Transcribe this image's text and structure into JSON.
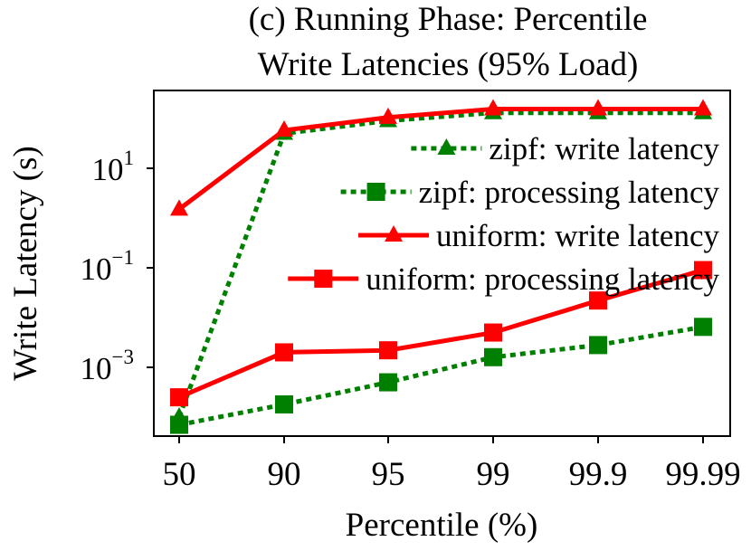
{
  "chart_data": {
    "type": "line",
    "title_lines": [
      "(c) Running Phase: Percentile",
      "Write Latencies (95% Load)"
    ],
    "xlabel": "Percentile (%)",
    "ylabel": "Write Latency (s)",
    "categories": [
      "50",
      "90",
      "95",
      "99",
      "99.9",
      "99.99"
    ],
    "y_scale": "log",
    "ylim": [
      6e-05,
      300
    ],
    "y_ticks": [
      {
        "value": 10,
        "base": "10",
        "exp": "1"
      },
      {
        "value": 0.1,
        "base": "10",
        "exp": "−1"
      },
      {
        "value": 0.001,
        "base": "10",
        "exp": "−3"
      }
    ],
    "legend_position": "right",
    "series": [
      {
        "name": "zipf: write latency",
        "color": "#008000",
        "dash": "dotted",
        "marker": "triangle",
        "values": [
          0.0001,
          50,
          90,
          130,
          130,
          130
        ]
      },
      {
        "name": "zipf: processing latency",
        "color": "#008000",
        "dash": "dotted",
        "marker": "square",
        "values": [
          7e-05,
          0.00018,
          0.0005,
          0.0016,
          0.0028,
          0.0065
        ]
      },
      {
        "name": "uniform: write latency",
        "color": "#ff0000",
        "dash": "solid",
        "marker": "triangle",
        "values": [
          1.5,
          58,
          105,
          155,
          155,
          155
        ]
      },
      {
        "name": "uniform: processing latency",
        "color": "#ff0000",
        "dash": "solid",
        "marker": "square",
        "values": [
          0.00025,
          0.002,
          0.0022,
          0.005,
          0.022,
          0.09
        ]
      }
    ]
  }
}
